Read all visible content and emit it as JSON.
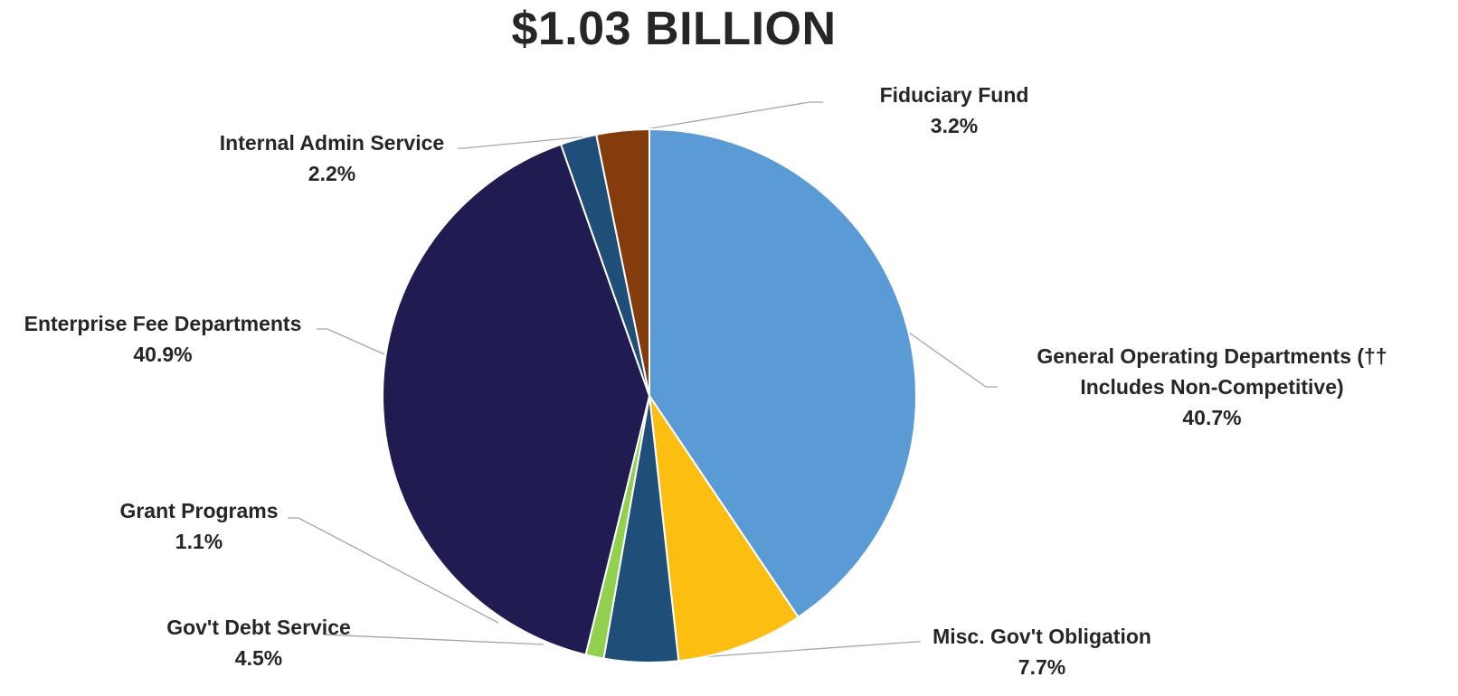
{
  "chart_data": {
    "type": "pie",
    "title": "$1.03 BILLION",
    "start_angle_deg": 0,
    "direction": "clockwise",
    "colors": {
      "leader_line": "#a6a6a6",
      "slice_border": "#ffffff",
      "text": "#262626"
    },
    "slices": [
      {
        "id": "general-operating",
        "label_lines": [
          "General Operating Departments (††",
          "Includes Non-Competitive)"
        ],
        "value_label": "40.7%",
        "value": 40.7,
        "color": "#5b9bd5"
      },
      {
        "id": "misc-govt-obligation",
        "label_lines": [
          "Misc. Gov't Obligation"
        ],
        "value_label": "7.7%",
        "value": 7.7,
        "color": "#fcbe11"
      },
      {
        "id": "govt-debt-service",
        "label_lines": [
          "Gov't Debt Service"
        ],
        "value_label": "4.5%",
        "value": 4.5,
        "color": "#1f4e79"
      },
      {
        "id": "grant-programs",
        "label_lines": [
          "Grant Programs"
        ],
        "value_label": "1.1%",
        "value": 1.1,
        "color": "#92d050"
      },
      {
        "id": "enterprise-fee",
        "label_lines": [
          "Enterprise Fee Departments"
        ],
        "value_label": "40.9%",
        "value": 40.9,
        "color": "#201c52"
      },
      {
        "id": "internal-admin",
        "label_lines": [
          "Internal Admin Service"
        ],
        "value_label": "2.2%",
        "value": 2.2,
        "color": "#1f4e79"
      },
      {
        "id": "fiduciary-fund",
        "label_lines": [
          "Fiduciary Fund"
        ],
        "value_label": "3.2%",
        "value": 3.2,
        "color": "#843c0c"
      }
    ]
  }
}
